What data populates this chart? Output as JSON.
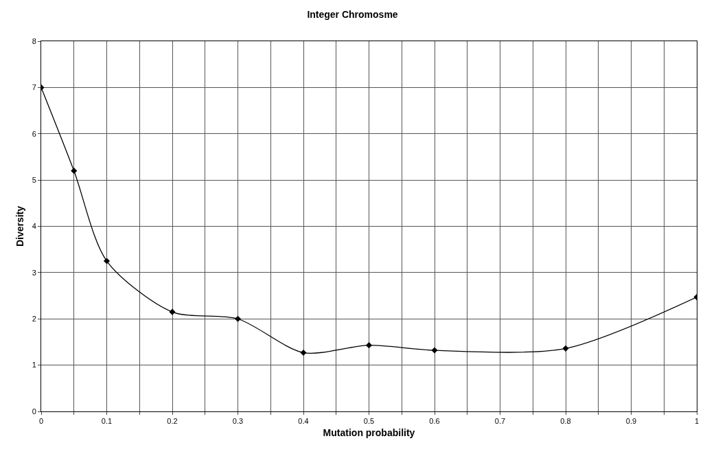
{
  "chart_data": {
    "type": "line",
    "title": "Integer Chromosme",
    "xlabel": "Mutation probability",
    "ylabel": "Diversity",
    "x": [
      0,
      0.05,
      0.1,
      0.2,
      0.3,
      0.4,
      0.5,
      0.6,
      0.8,
      1.0
    ],
    "series": [
      {
        "color": "#000000",
        "values": [
          7.0,
          5.2,
          3.25,
          2.15,
          2.0,
          1.27,
          1.43,
          1.32,
          1.36,
          2.47
        ]
      }
    ],
    "xlim": [
      0,
      1
    ],
    "xticks": [
      0,
      {
        "value": 0.05,
        "label": null
      },
      0.1,
      {
        "value": 0.15,
        "label": null
      },
      0.2,
      {
        "value": 0.25,
        "label": null
      },
      0.3,
      {
        "value": 0.35,
        "label": null
      },
      0.4,
      {
        "value": 0.45,
        "label": null
      },
      0.5,
      {
        "value": 0.55,
        "label": null
      },
      0.6,
      {
        "value": 0.65,
        "label": null
      },
      0.7,
      {
        "value": 0.75,
        "label": null
      },
      0.8,
      {
        "value": 0.85,
        "label": null
      },
      0.9,
      {
        "value": 0.95,
        "label": null
      },
      1
    ],
    "ylim": [
      0,
      8
    ],
    "yticks": [
      0,
      1,
      2,
      3,
      4,
      5,
      6,
      7,
      8
    ],
    "grid": true,
    "marker": "diamond",
    "line_style": "solid"
  }
}
